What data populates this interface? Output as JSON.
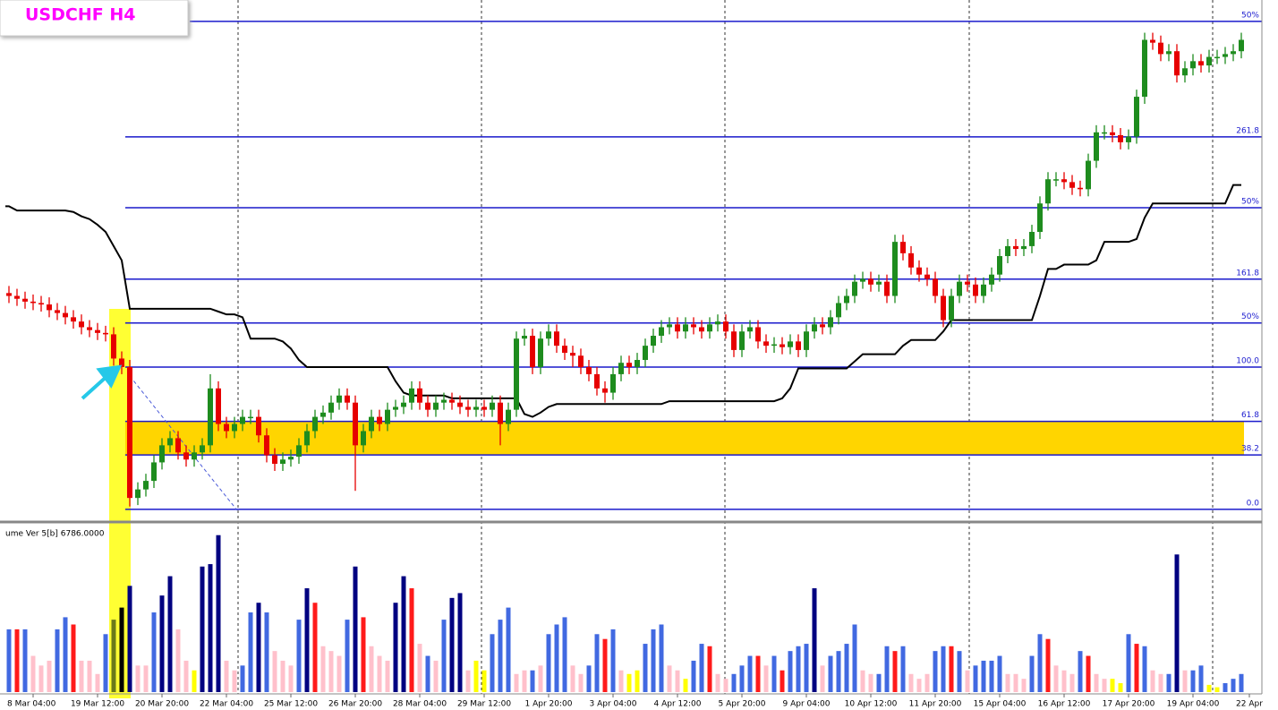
{
  "chart_data": {
    "type": "candlestick",
    "title": "USDCHF H4",
    "ylim": [
      -7,
      358
    ],
    "up_color": "#1e8c1e",
    "down_color": "#e60000",
    "categories": [
      null,
      null,
      null,
      "8 Mar 04:00",
      null,
      null,
      null,
      null,
      null,
      null,
      null,
      "19 Mar 12:00",
      null,
      null,
      null,
      null,
      null,
      null,
      null,
      "20 Mar 20:00",
      null,
      null,
      null,
      null,
      null,
      null,
      null,
      "22 Mar 04:00",
      null,
      null,
      null,
      null,
      null,
      null,
      null,
      "25 Mar 12:00",
      null,
      null,
      null,
      null,
      null,
      null,
      null,
      "26 Mar 20:00",
      null,
      null,
      null,
      null,
      null,
      null,
      null,
      "28 Mar 04:00",
      null,
      null,
      null,
      null,
      null,
      null,
      null,
      "29 Mar 12:00",
      null,
      null,
      null,
      null,
      null,
      null,
      null,
      "1 Apr 20:00",
      null,
      null,
      null,
      null,
      null,
      null,
      null,
      "3 Apr 04:00",
      null,
      null,
      null,
      null,
      null,
      null,
      null,
      "4 Apr 12:00",
      null,
      null,
      null,
      null,
      null,
      null,
      null,
      "5 Apr 20:00",
      null,
      null,
      null,
      null,
      null,
      null,
      null,
      "9 Apr 04:00",
      null,
      null,
      null,
      null,
      null,
      null,
      null,
      "10 Apr 12:00",
      null,
      null,
      null,
      null,
      null,
      null,
      null,
      "11 Apr 20:00",
      null,
      null,
      null,
      null,
      null,
      null,
      null,
      "15 Apr 04:00",
      null,
      null,
      null,
      null,
      null,
      null,
      null,
      "16 Apr 12:00",
      null,
      null,
      null,
      null,
      null,
      null,
      null,
      "17 Apr 20:00",
      null,
      null,
      null,
      null,
      null,
      null,
      null,
      "19 Apr 04:00",
      null,
      null,
      null,
      null,
      null,
      null,
      "22 Apr"
    ],
    "open": [
      152,
      150,
      148,
      146,
      145,
      144,
      140,
      138,
      135,
      132,
      128,
      126,
      124,
      123,
      106,
      100,
      8,
      14,
      20,
      33,
      45,
      50,
      40,
      35,
      40,
      45,
      85,
      60,
      55,
      60,
      65,
      65,
      52,
      38,
      32,
      35,
      37,
      45,
      55,
      65,
      68,
      75,
      80,
      75,
      45,
      55,
      65,
      60,
      70,
      72,
      75,
      85,
      75,
      70,
      75,
      77,
      75,
      72,
      70,
      72,
      70,
      75,
      60,
      70,
      120,
      122,
      100,
      120,
      125,
      115,
      110,
      108,
      100,
      95,
      85,
      82,
      95,
      103,
      100,
      105,
      115,
      122,
      128,
      130,
      125,
      130,
      128,
      125,
      130,
      132,
      125,
      112,
      125,
      128,
      118,
      115,
      116,
      114,
      118,
      112,
      125,
      130,
      128,
      135,
      145,
      150,
      160,
      162,
      158,
      160,
      150,
      188,
      180,
      170,
      165,
      162,
      150,
      133,
      150,
      160,
      158,
      150,
      158,
      165,
      178,
      185,
      183,
      185,
      195,
      215,
      232,
      232,
      230,
      226,
      225,
      245,
      265,
      265,
      263,
      258,
      262,
      290,
      330,
      328,
      320,
      322,
      305,
      310,
      315,
      312,
      318,
      318,
      320,
      322,
      null
    ],
    "high": [
      157,
      155,
      153,
      151,
      150,
      149,
      145,
      143,
      140,
      137,
      133,
      131,
      129,
      128,
      111,
      105,
      19,
      25,
      38,
      50,
      55,
      55,
      45,
      45,
      50,
      95,
      90,
      65,
      65,
      70,
      70,
      70,
      57,
      43,
      40,
      42,
      50,
      60,
      70,
      73,
      80,
      85,
      85,
      80,
      60,
      70,
      70,
      75,
      77,
      80,
      90,
      90,
      80,
      80,
      82,
      82,
      80,
      77,
      77,
      77,
      80,
      80,
      75,
      125,
      127,
      127,
      125,
      130,
      130,
      120,
      115,
      113,
      105,
      100,
      90,
      100,
      108,
      108,
      110,
      120,
      127,
      133,
      135,
      135,
      135,
      135,
      133,
      135,
      137,
      137,
      130,
      130,
      133,
      133,
      123,
      121,
      121,
      123,
      123,
      130,
      135,
      135,
      140,
      150,
      155,
      165,
      167,
      167,
      165,
      165,
      193,
      193,
      185,
      175,
      170,
      167,
      155,
      155,
      165,
      165,
      163,
      163,
      170,
      183,
      190,
      190,
      190,
      200,
      220,
      237,
      237,
      237,
      235,
      231,
      250,
      270,
      270,
      270,
      268,
      267,
      295,
      335,
      335,
      333,
      327,
      327,
      315,
      320,
      320,
      323,
      323,
      325,
      327,
      335,
      null
    ],
    "low": [
      145,
      143,
      141,
      140,
      139,
      135,
      133,
      130,
      127,
      123,
      121,
      119,
      118,
      101,
      95,
      2,
      3,
      9,
      15,
      28,
      40,
      35,
      30,
      30,
      35,
      40,
      55,
      50,
      50,
      55,
      60,
      47,
      33,
      27,
      27,
      30,
      32,
      40,
      50,
      60,
      63,
      70,
      70,
      13,
      40,
      50,
      55,
      55,
      65,
      67,
      70,
      70,
      65,
      65,
      70,
      70,
      67,
      65,
      65,
      65,
      65,
      45,
      55,
      65,
      115,
      95,
      95,
      115,
      110,
      105,
      100,
      95,
      90,
      80,
      75,
      77,
      90,
      95,
      95,
      100,
      110,
      117,
      123,
      120,
      120,
      123,
      120,
      120,
      125,
      120,
      107,
      107,
      120,
      113,
      110,
      110,
      109,
      109,
      107,
      107,
      120,
      123,
      123,
      130,
      140,
      145,
      155,
      153,
      153,
      145,
      145,
      175,
      165,
      160,
      157,
      145,
      128,
      128,
      145,
      153,
      145,
      145,
      153,
      160,
      173,
      178,
      178,
      180,
      190,
      210,
      227,
      225,
      221,
      220,
      220,
      240,
      260,
      258,
      253,
      253,
      257,
      285,
      323,
      315,
      315,
      300,
      300,
      305,
      307,
      307,
      313,
      313,
      315,
      317,
      null
    ],
    "close": [
      150,
      148,
      146,
      145,
      144,
      140,
      138,
      135,
      132,
      128,
      126,
      124,
      123,
      106,
      100,
      8,
      14,
      20,
      33,
      45,
      50,
      40,
      35,
      40,
      45,
      85,
      60,
      55,
      60,
      65,
      65,
      52,
      38,
      32,
      35,
      37,
      45,
      55,
      65,
      68,
      75,
      80,
      75,
      45,
      55,
      65,
      60,
      70,
      72,
      75,
      85,
      75,
      70,
      75,
      77,
      75,
      72,
      70,
      72,
      70,
      75,
      60,
      70,
      120,
      122,
      100,
      120,
      125,
      115,
      110,
      108,
      100,
      95,
      85,
      82,
      95,
      103,
      100,
      105,
      115,
      122,
      128,
      130,
      125,
      130,
      128,
      125,
      130,
      132,
      125,
      112,
      125,
      128,
      118,
      115,
      116,
      114,
      118,
      112,
      125,
      130,
      128,
      135,
      145,
      150,
      160,
      162,
      158,
      160,
      150,
      188,
      180,
      170,
      165,
      162,
      150,
      133,
      150,
      160,
      158,
      150,
      158,
      165,
      178,
      185,
      183,
      185,
      195,
      215,
      232,
      232,
      230,
      226,
      225,
      245,
      265,
      265,
      263,
      258,
      262,
      290,
      330,
      328,
      320,
      322,
      305,
      310,
      315,
      312,
      318,
      318,
      320,
      322,
      330,
      null
    ],
    "baseline": {
      "color": "#000000",
      "values": [
        213,
        210,
        210,
        210,
        210,
        210,
        210,
        210,
        209,
        206,
        204,
        200,
        195,
        185,
        175,
        141,
        141,
        141,
        141,
        141,
        141,
        141,
        141,
        141,
        141,
        141,
        139,
        137,
        137,
        135,
        120,
        120,
        120,
        120,
        118,
        113,
        105,
        100,
        100,
        100,
        100,
        100,
        100,
        100,
        100,
        100,
        100,
        100,
        90,
        82,
        80,
        80,
        80,
        80,
        80,
        78,
        78,
        78,
        78,
        78,
        78,
        78,
        78,
        78,
        67,
        65,
        68,
        72,
        74,
        74,
        74,
        74,
        74,
        74,
        74,
        74,
        74,
        74,
        74,
        74,
        74,
        74,
        76,
        76,
        76,
        76,
        76,
        76,
        76,
        76,
        76,
        76,
        76,
        76,
        76,
        76,
        78,
        85,
        99,
        99,
        99,
        99,
        99,
        99,
        99,
        104,
        109,
        109,
        109,
        109,
        109,
        115,
        119,
        119,
        119,
        119,
        125,
        133,
        133,
        133,
        133,
        133,
        133,
        133,
        133,
        133,
        133,
        133,
        150,
        169,
        169,
        172,
        172,
        172,
        172,
        175,
        188,
        188,
        188,
        188,
        190,
        205,
        215,
        215,
        215,
        215,
        215,
        215,
        215,
        215,
        215,
        215,
        228,
        228,
        null
      ]
    },
    "levels": [
      {
        "value": 343,
        "label": "50%"
      },
      261.8,
      {
        "value": 212,
        "label": "50%"
      },
      161.8,
      {
        "value": 131,
        "label": "50%"
      },
      {
        "value": 100,
        "label": "100.0"
      },
      61.8,
      38.2,
      {
        "value": 0,
        "label": "0.0"
      }
    ],
    "level_color": "#1a1acc",
    "zone": {
      "low": 38.2,
      "high": 61.8,
      "color": "#ffd500"
    },
    "volume": {
      "label": "ume Ver 5[b] 6786.0000",
      "ylim": [
        0,
        6786
      ],
      "values": [
        2600,
        2600,
        2600,
        1500,
        1100,
        1300,
        2600,
        3100,
        2800,
        1300,
        1300,
        750,
        2400,
        3000,
        3500,
        4400,
        1100,
        1100,
        3300,
        4000,
        4800,
        2600,
        1300,
        900,
        5200,
        5300,
        6500,
        1300,
        900,
        1100,
        3300,
        3700,
        3300,
        1700,
        1300,
        1100,
        3000,
        4300,
        3700,
        1900,
        1700,
        1500,
        3000,
        5200,
        3100,
        1900,
        1500,
        1300,
        3700,
        4800,
        4300,
        2000,
        1500,
        1300,
        3000,
        3900,
        4100,
        900,
        1300,
        900,
        2400,
        3000,
        3500,
        750,
        900,
        900,
        1100,
        2400,
        2800,
        3100,
        1100,
        750,
        1100,
        2400,
        2200,
        2600,
        900,
        750,
        900,
        2000,
        2600,
        2800,
        1100,
        900,
        550,
        1300,
        2000,
        1900,
        750,
        550,
        750,
        1100,
        1500,
        1500,
        1100,
        1500,
        900,
        1700,
        1900,
        2000,
        4300,
        1100,
        1500,
        1700,
        2000,
        2800,
        900,
        750,
        750,
        1900,
        1700,
        1900,
        750,
        550,
        750,
        1700,
        1900,
        1900,
        1700,
        900,
        1100,
        1300,
        1300,
        1500,
        750,
        750,
        550,
        1500,
        2400,
        2200,
        1100,
        900,
        750,
        1700,
        1500,
        750,
        550,
        550,
        370,
        2400,
        2000,
        1900,
        900,
        750,
        750,
        5700,
        900,
        900,
        1100,
        300,
        200,
        370,
        550,
        750,
        null
      ],
      "colors": [
        "#4169e1",
        "#ff1a1a",
        "#4169e1",
        "#ffc0cb",
        "#ffc0cb",
        "#ffc0cb",
        "#4169e1",
        "#4169e1",
        "#ff1a1a",
        "#ffc0cb",
        "#ffc0cb",
        "#ffc0cb",
        "#4169e1",
        "#6b7a1a",
        "#000000",
        "#000080",
        "#ffc0cb",
        "#ffc0cb",
        "#4169e1",
        "#000080",
        "#000080",
        "#ffc0cb",
        "#ffc0cb",
        "#ffff00",
        "#000080",
        "#000080",
        "#000080",
        "#ffc0cb",
        "#ffc0cb",
        "#4169e1",
        "#4169e1",
        "#000080",
        "#4169e1",
        "#ffc0cb",
        "#ffc0cb",
        "#ffc0cb",
        "#4169e1",
        "#000080",
        "#ff1a1a",
        "#ffc0cb",
        "#ffc0cb",
        "#ffc0cb",
        "#4169e1",
        "#000080",
        "#ff1a1a",
        "#ffc0cb",
        "#ffc0cb",
        "#ffc0cb",
        "#000080",
        "#000080",
        "#ff1a1a",
        "#ffc0cb",
        "#4169e1",
        "#ffc0cb",
        "#4169e1",
        "#000080",
        "#000080",
        "#ffc0cb",
        "#ffff00",
        "#ffff00",
        "#4169e1",
        "#4169e1",
        "#4169e1",
        "#ffc0cb",
        "#ffc0cb",
        "#4169e1",
        "#ffc0cb",
        "#4169e1",
        "#4169e1",
        "#4169e1",
        "#ffc0cb",
        "#ffc0cb",
        "#4169e1",
        "#4169e1",
        "#ff1a1a",
        "#4169e1",
        "#ffc0cb",
        "#ffff00",
        "#ffff00",
        "#4169e1",
        "#4169e1",
        "#4169e1",
        "#ffc0cb",
        "#ffc0cb",
        "#ffff00",
        "#4169e1",
        "#4169e1",
        "#ff1a1a",
        "#ffc0cb",
        "#ffc0cb",
        "#4169e1",
        "#4169e1",
        "#4169e1",
        "#ff1a1a",
        "#ffc0cb",
        "#4169e1",
        "#ff1a1a",
        "#4169e1",
        "#4169e1",
        "#4169e1",
        "#000080",
        "#ffc0cb",
        "#4169e1",
        "#4169e1",
        "#4169e1",
        "#4169e1",
        "#ffc0cb",
        "#ffc0cb",
        "#4169e1",
        "#4169e1",
        "#ff1a1a",
        "#4169e1",
        "#ffc0cb",
        "#ffc0cb",
        "#ffc0cb",
        "#4169e1",
        "#4169e1",
        "#ff1a1a",
        "#4169e1",
        "#ffc0cb",
        "#4169e1",
        "#4169e1",
        "#4169e1",
        "#4169e1",
        "#ffc0cb",
        "#ffc0cb",
        "#ffc0cb",
        "#4169e1",
        "#4169e1",
        "#ff1a1a",
        "#ffc0cb",
        "#ffc0cb",
        "#ffc0cb",
        "#4169e1",
        "#ff1a1a",
        "#ffc0cb",
        "#ffc0cb",
        "#ffff00",
        "#ffff00",
        "#4169e1",
        "#ff1a1a",
        "#4169e1",
        "#ffc0cb",
        "#ffc0cb",
        "#4169e1",
        "#000080",
        "#ffc0cb",
        "#4169e1",
        "#4169e1",
        "#ffff00",
        "#ffff00",
        "#4169e1",
        "#4169e1",
        "#4169e1",
        null
      ]
    }
  }
}
